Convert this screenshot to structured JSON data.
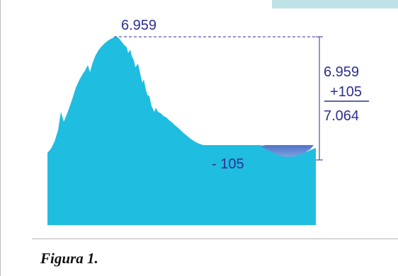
{
  "diagram": {
    "peak_value_label": "6.959",
    "sum": {
      "line1": "6.959",
      "line2": "+105",
      "result": "7.064"
    },
    "valley_label": "- 105"
  },
  "caption": {
    "text": "Figura 1."
  },
  "colors": {
    "terrain": "#1fbde0",
    "water": "#5a7fd0",
    "annotation": "#2d2e93",
    "tab": "#bfe2e6"
  }
}
